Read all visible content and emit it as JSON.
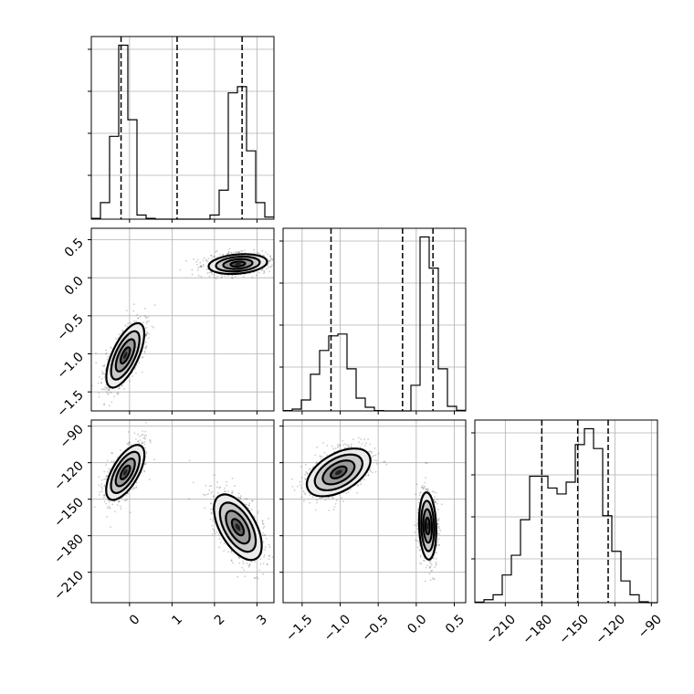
{
  "chart_data": {
    "type": "corner",
    "params": [
      {
        "id": "p0",
        "xlim": [
          -0.9,
          3.4
        ],
        "ticks": [
          0,
          1,
          2,
          3
        ],
        "tick_labels": [
          "0",
          "1",
          "2",
          "3"
        ]
      },
      {
        "id": "p1",
        "xlim": [
          -1.75,
          0.65
        ],
        "ticks": [
          -1.5,
          -1.0,
          -0.5,
          0.0,
          0.5
        ],
        "tick_labels": [
          "−1.5",
          "−1.0",
          "−0.5",
          "0.0",
          "0.5"
        ]
      },
      {
        "id": "p2",
        "xlim": [
          -235,
          -85
        ],
        "ticks": [
          -210,
          -180,
          -150,
          -120,
          -90
        ],
        "tick_labels": [
          "−210",
          "−180",
          "−150",
          "−120",
          "−90"
        ]
      }
    ],
    "row_y_ticks": [
      null,
      {
        "ylim": [
          -1.75,
          0.65
        ],
        "ticks": [
          -1.5,
          -1.0,
          -0.5,
          0.0,
          0.5
        ],
        "tick_labels": [
          "−1.5",
          "−1.0",
          "−0.5",
          "0.0",
          "0.5"
        ]
      },
      {
        "ylim": [
          -235,
          -85
        ],
        "ticks": [
          -210,
          -180,
          -150,
          -120,
          -90
        ],
        "tick_labels": [
          "−210",
          "−180",
          "−150",
          "−120",
          "−90"
        ]
      }
    ],
    "histograms": [
      {
        "param": 0,
        "bin_edges": [
          -0.9,
          -0.685,
          -0.47,
          -0.255,
          -0.04,
          0.175,
          0.39,
          0.605,
          0.82,
          1.035,
          1.25,
          1.465,
          1.68,
          1.895,
          2.11,
          2.325,
          2.54,
          2.755,
          2.97,
          3.185,
          3.4
        ],
        "counts": [
          2,
          40,
          200,
          420,
          240,
          10,
          2,
          0,
          0,
          0,
          0,
          0,
          0,
          10,
          70,
          305,
          320,
          165,
          40,
          5
        ],
        "quantiles": [
          -0.2,
          1.12,
          2.65
        ]
      },
      {
        "param": 1,
        "bin_edges": [
          -1.75,
          -1.63,
          -1.51,
          -1.39,
          -1.27,
          -1.15,
          -1.03,
          -0.91,
          -0.79,
          -0.67,
          -0.55,
          -0.43,
          -0.31,
          -0.19,
          -0.07,
          0.05,
          0.17,
          0.29,
          0.41,
          0.53,
          0.65
        ],
        "counts": [
          2,
          10,
          60,
          200,
          330,
          410,
          420,
          230,
          70,
          20,
          2,
          0,
          0,
          0,
          140,
          950,
          780,
          230,
          25,
          3
        ],
        "quantiles": [
          -1.12,
          -0.18,
          0.22
        ]
      },
      {
        "param": 2,
        "bin_edges": [
          -235,
          -227.5,
          -220,
          -212.5,
          -205,
          -197.5,
          -190,
          -182.5,
          -175,
          -167.5,
          -160,
          -152.5,
          -145,
          -137.5,
          -130,
          -122.5,
          -115,
          -107.5,
          -100,
          -92.5,
          -85
        ],
        "counts": [
          3,
          15,
          40,
          140,
          240,
          420,
          640,
          640,
          580,
          550,
          610,
          800,
          880,
          780,
          440,
          260,
          110,
          40,
          5,
          0
        ],
        "quantiles": [
          -180,
          -150.5,
          -125.5
        ]
      }
    ],
    "pairs": [
      {
        "x_param": 0,
        "y_param": 1,
        "modes": [
          {
            "center": [
              -0.1,
              -1.02
            ],
            "sigma_x": 0.22,
            "sigma_y": 0.2,
            "tilt_deg": 65
          },
          {
            "center": [
              2.55,
              0.18
            ],
            "sigma_x": 0.3,
            "sigma_y": 0.09,
            "tilt_deg": 5
          }
        ]
      },
      {
        "x_param": 0,
        "y_param": 2,
        "modes": [
          {
            "center": [
              -0.1,
              -128
            ],
            "sigma_x": 0.22,
            "sigma_y": 11,
            "tilt_deg": 60
          },
          {
            "center": [
              2.55,
              -173
            ],
            "sigma_x": 0.3,
            "sigma_y": 13,
            "tilt_deg": 120
          }
        ]
      },
      {
        "x_param": 1,
        "y_param": 2,
        "modes": [
          {
            "center": [
              -1.02,
              -128
            ],
            "sigma_x": 0.2,
            "sigma_y": 11,
            "tilt_deg": 30
          },
          {
            "center": [
              0.15,
              -172
            ],
            "sigma_x": 0.08,
            "sigma_y": 12,
            "tilt_deg": 92
          }
        ]
      }
    ],
    "contour_levels_sigma": [
      0.5,
      1.0,
      1.5,
      2.0
    ],
    "title": "",
    "xlabel": "",
    "ylabel": "",
    "grid": true,
    "legend": "none"
  }
}
